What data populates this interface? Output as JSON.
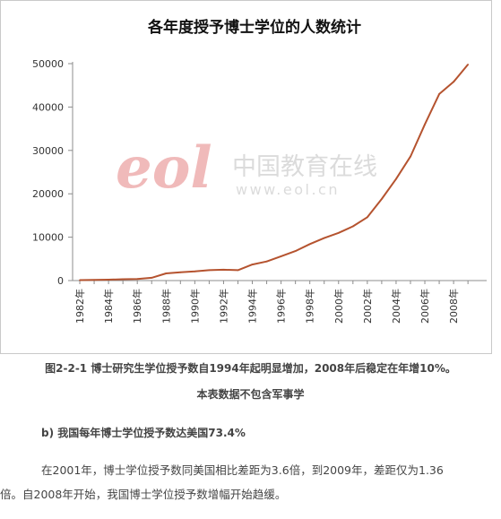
{
  "chart_data": {
    "type": "line",
    "title": "各年度授予博士学位的人数统计",
    "xlabel": "",
    "ylabel": "",
    "ylim": [
      0,
      50000
    ],
    "y_ticks": [
      0,
      10000,
      20000,
      30000,
      40000,
      50000
    ],
    "x_tick_labels": [
      "1982年",
      "1984年",
      "1986年",
      "1988年",
      "1990年",
      "1992年",
      "1994年",
      "1996年",
      "1998年",
      "2000年",
      "2002年",
      "2004年",
      "2006年",
      "2008年"
    ],
    "grid": false,
    "legend": "none",
    "line_color": "#b5532f",
    "series": [
      {
        "x": [
          1982,
          1983,
          1984,
          1985,
          1986,
          1987,
          1988,
          1989,
          1990,
          1991,
          1992,
          1993,
          1994,
          1995,
          1996,
          1997,
          1998,
          1999,
          2000,
          2001,
          2002,
          2003,
          2004,
          2005,
          2006,
          2007,
          2008,
          2009
        ],
        "values": [
          100,
          150,
          200,
          300,
          350,
          650,
          1650,
          1900,
          2100,
          2400,
          2500,
          2400,
          3700,
          4400,
          5600,
          6800,
          8400,
          9800,
          11000,
          12500,
          14600,
          18800,
          23400,
          28600,
          36000,
          43000,
          45800,
          49800
        ]
      }
    ]
  },
  "watermark": {
    "logo_text": "eol",
    "cn_text": "中国教育在线",
    "url_text": "www.eol.cn"
  },
  "caption": {
    "line1": "图2-2-1 博士研究生学位授予数自1994年起明显增加，2008年后稳定在年增10%。",
    "line2": "本表数据不包含军事学"
  },
  "subheading": "b) 我国每年博士学位授予数达美国73.4%",
  "paragraph": {
    "line1": "在2001年，博士学位授予数同美国相比差距为3.6倍，到2009年，差距仅为1.36",
    "line2": "倍。自2008年开始，我国博士学位授予数增幅开始趋缓。"
  }
}
